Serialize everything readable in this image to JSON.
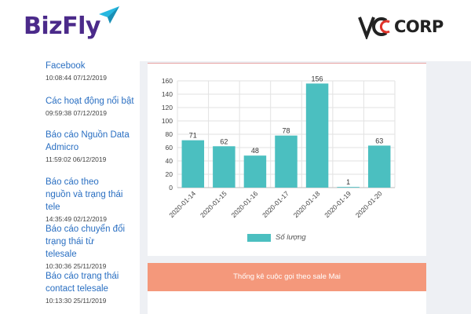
{
  "header": {
    "brand_left": "BizFly",
    "brand_right_mark": "VC",
    "brand_right_text": "CORP",
    "accent_purple": "#4b2a8a",
    "accent_cyan": "#27b8e0"
  },
  "sidebar": {
    "items": [
      {
        "title": "Facebook",
        "time": "10:08:44 07/12/2019"
      },
      {
        "title": "Các hoạt động nổi bật",
        "time": "09:59:38 07/12/2019"
      },
      {
        "title": "Báo cáo Nguồn Data Admicro",
        "time": "11:59:02 06/12/2019"
      },
      {
        "title": "Báo cáo theo nguồn và trạng thái tele",
        "time": "14:35:49 02/12/2019"
      },
      {
        "title": "Báo cáo chuyển đổi trạng thái từ telesale",
        "time": "10:30:36 25/11/2019"
      },
      {
        "title": "Báo cáo trạng thái contact telesale",
        "time": "10:13:30 25/11/2019"
      }
    ]
  },
  "chart_data": {
    "type": "bar",
    "categories": [
      "2020-01-14",
      "2020-01-15",
      "2020-01-16",
      "2020-01-17",
      "2020-01-18",
      "2020-01-19",
      "2020-01-20"
    ],
    "values": [
      71,
      62,
      48,
      78,
      156,
      1,
      63
    ],
    "series": [
      {
        "name": "Số lượng",
        "values": [
          71,
          62,
          48,
          78,
          156,
          1,
          63
        ]
      }
    ],
    "ylim": [
      0,
      160
    ],
    "yticks": [
      0,
      20,
      40,
      60,
      80,
      100,
      120,
      140,
      160
    ],
    "grid": true,
    "legend_position": "bottom",
    "bar_color": "#4bbfc0",
    "title": "",
    "xlabel": "",
    "ylabel": ""
  },
  "panel": {
    "title": "Thống kê cuộc gọi theo sale Mai",
    "color": "#f4987b"
  }
}
